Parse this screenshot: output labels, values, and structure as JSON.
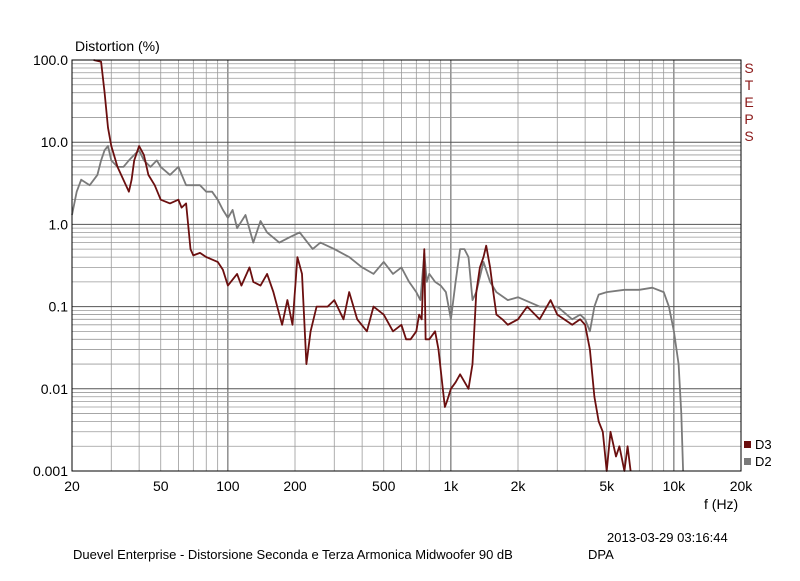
{
  "chart_data": {
    "type": "line",
    "ylabel": "Distortion (%)",
    "xlabel": "f (Hz)",
    "xscale": "log",
    "yscale": "log",
    "xlim": [
      20,
      20000
    ],
    "ylim": [
      0.001,
      100
    ],
    "x_ticks": [
      {
        "v": 20,
        "label": "20"
      },
      {
        "v": 50,
        "label": "50"
      },
      {
        "v": 100,
        "label": "100"
      },
      {
        "v": 200,
        "label": "200"
      },
      {
        "v": 500,
        "label": "500"
      },
      {
        "v": 1000,
        "label": "1k"
      },
      {
        "v": 2000,
        "label": "2k"
      },
      {
        "v": 5000,
        "label": "5k"
      },
      {
        "v": 10000,
        "label": "10k"
      },
      {
        "v": 20000,
        "label": "20k"
      }
    ],
    "y_ticks": [
      {
        "v": 100,
        "label": "100.0"
      },
      {
        "v": 10,
        "label": "10.0"
      },
      {
        "v": 1,
        "label": "1.0"
      },
      {
        "v": 0.1,
        "label": "0.1"
      },
      {
        "v": 0.01,
        "label": "0.01"
      },
      {
        "v": 0.001,
        "label": "0.001"
      }
    ],
    "grid": true,
    "legend_position": "bottom-right",
    "series": [
      {
        "name": "D3",
        "color": "#6b0f0f",
        "points": [
          [
            25,
            100
          ],
          [
            27,
            95
          ],
          [
            28,
            40
          ],
          [
            29,
            15
          ],
          [
            30,
            9
          ],
          [
            32,
            5
          ],
          [
            34,
            3.5
          ],
          [
            36,
            2.5
          ],
          [
            37,
            3.5
          ],
          [
            38,
            6
          ],
          [
            40,
            9
          ],
          [
            42,
            7
          ],
          [
            44,
            4
          ],
          [
            47,
            3
          ],
          [
            50,
            2
          ],
          [
            55,
            1.8
          ],
          [
            60,
            2
          ],
          [
            62,
            1.6
          ],
          [
            65,
            1.8
          ],
          [
            68,
            0.5
          ],
          [
            70,
            0.42
          ],
          [
            75,
            0.45
          ],
          [
            80,
            0.4
          ],
          [
            90,
            0.35
          ],
          [
            95,
            0.28
          ],
          [
            100,
            0.18
          ],
          [
            110,
            0.25
          ],
          [
            115,
            0.18
          ],
          [
            125,
            0.3
          ],
          [
            130,
            0.2
          ],
          [
            140,
            0.18
          ],
          [
            150,
            0.25
          ],
          [
            160,
            0.15
          ],
          [
            175,
            0.06
          ],
          [
            185,
            0.12
          ],
          [
            195,
            0.06
          ],
          [
            205,
            0.4
          ],
          [
            215,
            0.25
          ],
          [
            225,
            0.02
          ],
          [
            235,
            0.05
          ],
          [
            250,
            0.1
          ],
          [
            280,
            0.1
          ],
          [
            300,
            0.12
          ],
          [
            330,
            0.07
          ],
          [
            350,
            0.15
          ],
          [
            380,
            0.07
          ],
          [
            420,
            0.05
          ],
          [
            450,
            0.1
          ],
          [
            500,
            0.08
          ],
          [
            550,
            0.05
          ],
          [
            600,
            0.06
          ],
          [
            630,
            0.04
          ],
          [
            660,
            0.04
          ],
          [
            700,
            0.05
          ],
          [
            720,
            0.08
          ],
          [
            740,
            0.07
          ],
          [
            760,
            0.5
          ],
          [
            770,
            0.04
          ],
          [
            800,
            0.04
          ],
          [
            850,
            0.05
          ],
          [
            880,
            0.03
          ],
          [
            920,
            0.01
          ],
          [
            940,
            0.006
          ],
          [
            960,
            0.007
          ],
          [
            1000,
            0.01
          ],
          [
            1050,
            0.012
          ],
          [
            1100,
            0.015
          ],
          [
            1200,
            0.01
          ],
          [
            1250,
            0.02
          ],
          [
            1300,
            0.15
          ],
          [
            1350,
            0.3
          ],
          [
            1400,
            0.4
          ],
          [
            1440,
            0.55
          ],
          [
            1500,
            0.3
          ],
          [
            1550,
            0.15
          ],
          [
            1600,
            0.08
          ],
          [
            1700,
            0.07
          ],
          [
            1800,
            0.06
          ],
          [
            2000,
            0.07
          ],
          [
            2200,
            0.1
          ],
          [
            2500,
            0.07
          ],
          [
            2800,
            0.12
          ],
          [
            3000,
            0.08
          ],
          [
            3500,
            0.06
          ],
          [
            3800,
            0.07
          ],
          [
            4000,
            0.06
          ],
          [
            4200,
            0.03
          ],
          [
            4400,
            0.008
          ],
          [
            4600,
            0.004
          ],
          [
            4800,
            0.003
          ],
          [
            5000,
            0.001
          ],
          [
            5200,
            0.003
          ],
          [
            5500,
            0.0015
          ],
          [
            5700,
            0.002
          ],
          [
            6000,
            0.001
          ],
          [
            6200,
            0.002
          ],
          [
            6400,
            0.001
          ]
        ]
      },
      {
        "name": "D2",
        "color": "#7a7a7a",
        "points": [
          [
            20,
            1.3
          ],
          [
            21,
            2.5
          ],
          [
            22,
            3.5
          ],
          [
            24,
            3
          ],
          [
            26,
            4
          ],
          [
            27,
            6
          ],
          [
            28,
            8
          ],
          [
            29,
            9
          ],
          [
            30,
            6
          ],
          [
            32,
            5
          ],
          [
            34,
            5
          ],
          [
            36,
            6
          ],
          [
            38,
            7
          ],
          [
            40,
            8
          ],
          [
            42,
            6
          ],
          [
            45,
            5
          ],
          [
            48,
            6
          ],
          [
            50,
            5
          ],
          [
            55,
            4
          ],
          [
            60,
            5
          ],
          [
            65,
            3
          ],
          [
            70,
            3
          ],
          [
            75,
            3
          ],
          [
            80,
            2.5
          ],
          [
            85,
            2.5
          ],
          [
            90,
            2
          ],
          [
            95,
            1.5
          ],
          [
            100,
            1.2
          ],
          [
            105,
            1.5
          ],
          [
            110,
            0.9
          ],
          [
            120,
            1.3
          ],
          [
            130,
            0.6
          ],
          [
            140,
            1.1
          ],
          [
            150,
            0.8
          ],
          [
            170,
            0.6
          ],
          [
            190,
            0.7
          ],
          [
            210,
            0.8
          ],
          [
            240,
            0.5
          ],
          [
            260,
            0.6
          ],
          [
            300,
            0.5
          ],
          [
            350,
            0.4
          ],
          [
            400,
            0.3
          ],
          [
            450,
            0.25
          ],
          [
            500,
            0.35
          ],
          [
            550,
            0.25
          ],
          [
            600,
            0.3
          ],
          [
            650,
            0.2
          ],
          [
            700,
            0.15
          ],
          [
            730,
            0.12
          ],
          [
            760,
            0.45
          ],
          [
            780,
            0.2
          ],
          [
            800,
            0.25
          ],
          [
            850,
            0.2
          ],
          [
            900,
            0.18
          ],
          [
            950,
            0.15
          ],
          [
            1000,
            0.07
          ],
          [
            1050,
            0.2
          ],
          [
            1100,
            0.5
          ],
          [
            1150,
            0.5
          ],
          [
            1200,
            0.4
          ],
          [
            1250,
            0.12
          ],
          [
            1300,
            0.15
          ],
          [
            1400,
            0.35
          ],
          [
            1500,
            0.2
          ],
          [
            1600,
            0.15
          ],
          [
            1800,
            0.12
          ],
          [
            2000,
            0.13
          ],
          [
            2500,
            0.1
          ],
          [
            3000,
            0.1
          ],
          [
            3500,
            0.07
          ],
          [
            3800,
            0.08
          ],
          [
            4000,
            0.07
          ],
          [
            4200,
            0.05
          ],
          [
            4400,
            0.1
          ],
          [
            4600,
            0.14
          ],
          [
            5000,
            0.15
          ],
          [
            6000,
            0.16
          ],
          [
            7000,
            0.16
          ],
          [
            8000,
            0.17
          ],
          [
            9000,
            0.15
          ],
          [
            9500,
            0.1
          ],
          [
            10000,
            0.05
          ],
          [
            10500,
            0.02
          ],
          [
            10800,
            0.005
          ],
          [
            11000,
            0.001
          ]
        ]
      }
    ]
  },
  "side_label": "STEPS",
  "timestamp": "2013-03-29 03:16:44",
  "caption": "Duevel Enterprise - Distorsione Seconda e Terza Armonica Midwoofer 90 dB",
  "caption_tag": "DPA"
}
